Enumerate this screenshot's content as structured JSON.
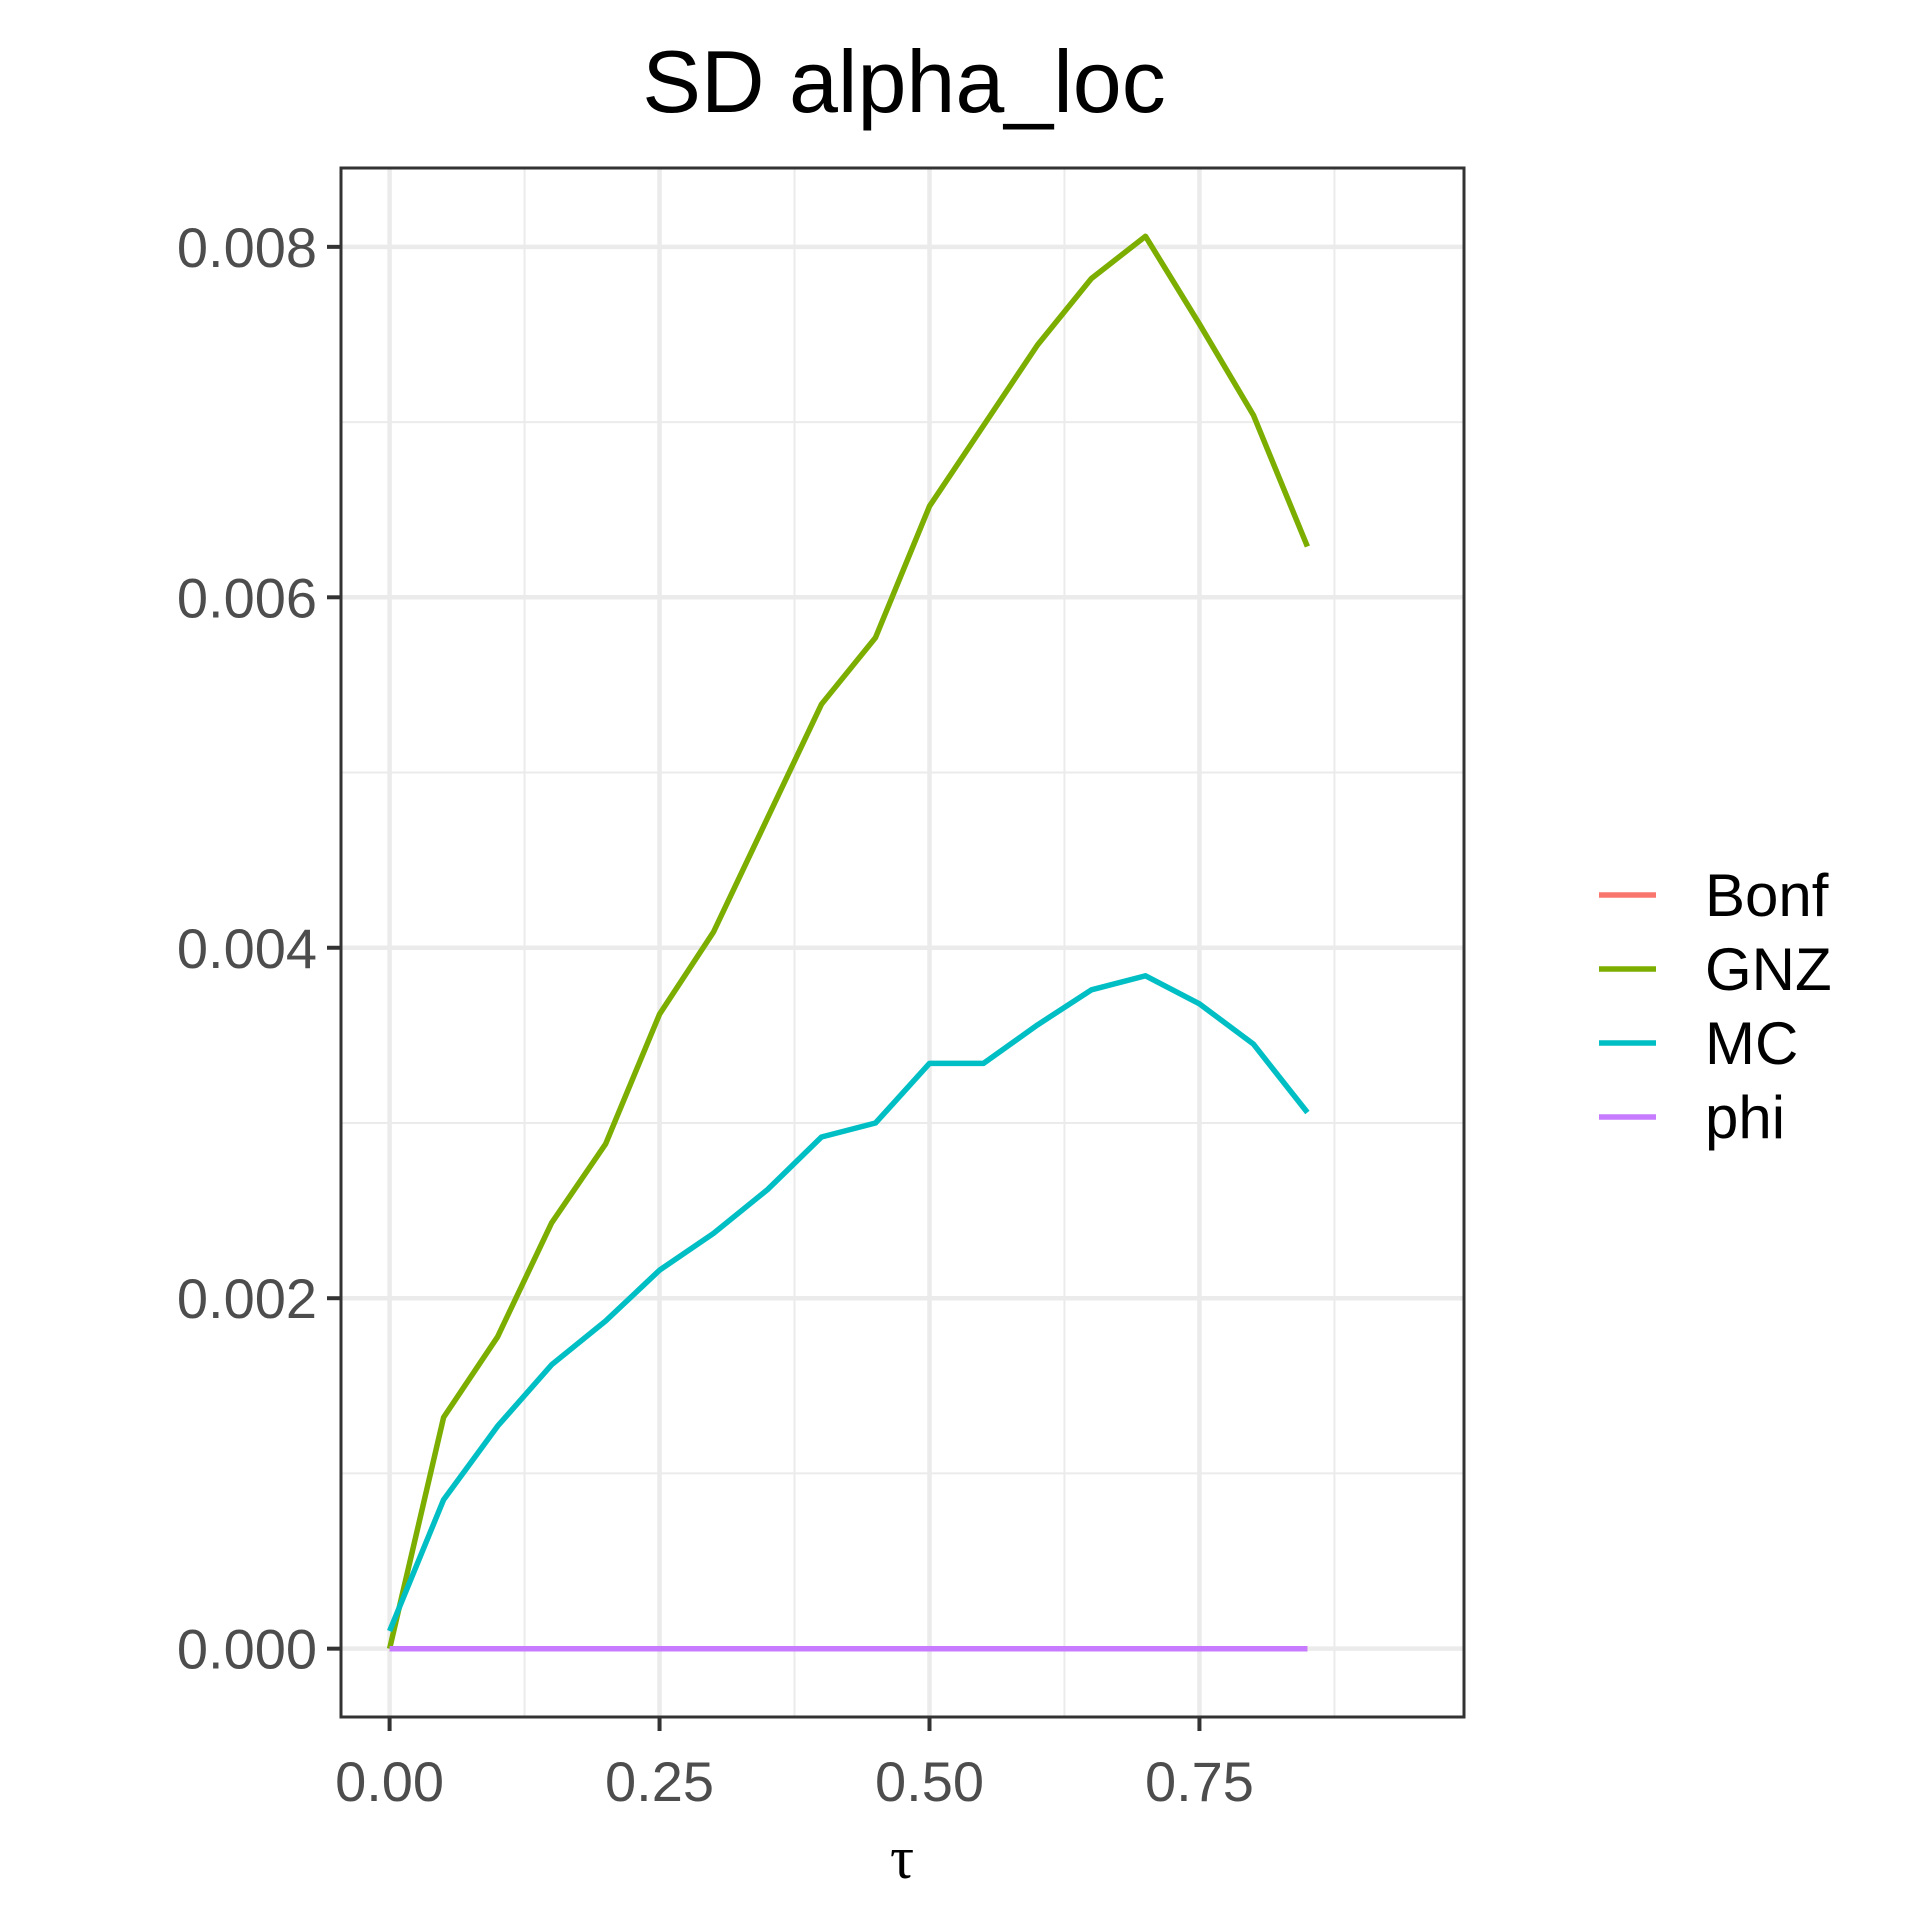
{
  "chart_data": {
    "type": "line",
    "title": "SD alpha_loc",
    "xlabel": "τ",
    "ylabel": "",
    "xlim": [
      -0.045,
      0.995
    ],
    "ylim": [
      -0.00039,
      0.00845
    ],
    "x_ticks": [
      0.0,
      0.25,
      0.5,
      0.75
    ],
    "x_tick_labels": [
      "0.00",
      "0.25",
      "0.50",
      "0.75"
    ],
    "x_minor": [
      0.125,
      0.375,
      0.625,
      0.875
    ],
    "y_ticks": [
      0.0,
      0.002,
      0.004,
      0.006,
      0.008
    ],
    "y_tick_labels": [
      "0.000",
      "0.002",
      "0.004",
      "0.006",
      "0.008"
    ],
    "y_minor": [
      0.001,
      0.003,
      0.005,
      0.007
    ],
    "grid": true,
    "legend_position": "right",
    "series": [
      {
        "name": "Bonf",
        "color": "#F8766D",
        "x": [
          0.0,
          0.05,
          0.1,
          0.15,
          0.2,
          0.25,
          0.3,
          0.35,
          0.4,
          0.45,
          0.5,
          0.55,
          0.6,
          0.65,
          0.7,
          0.75,
          0.8,
          0.85
        ],
        "y": [
          0,
          0,
          0,
          0,
          0,
          0,
          0,
          0,
          0,
          0,
          0,
          0,
          0,
          0,
          0,
          0,
          0,
          0
        ]
      },
      {
        "name": "GNZ",
        "color": "#7CAE00",
        "x": [
          0.0,
          0.05,
          0.1,
          0.15,
          0.2,
          0.25,
          0.3,
          0.35,
          0.4,
          0.45,
          0.5,
          0.55,
          0.6,
          0.65,
          0.7,
          0.75,
          0.8,
          0.85
        ],
        "y": [
          0.0,
          0.00132,
          0.00178,
          0.00243,
          0.00288,
          0.00362,
          0.00409,
          0.00474,
          0.00539,
          0.00577,
          0.00652,
          0.00698,
          0.00744,
          0.00782,
          0.00806,
          0.00756,
          0.00704,
          0.00629
        ]
      },
      {
        "name": "MC",
        "color": "#00BFC4",
        "x": [
          0.0,
          0.05,
          0.1,
          0.15,
          0.2,
          0.25,
          0.3,
          0.35,
          0.4,
          0.45,
          0.5,
          0.55,
          0.6,
          0.65,
          0.7,
          0.75,
          0.8,
          0.85
        ],
        "y": [
          0.0001,
          0.00085,
          0.00127,
          0.00162,
          0.00187,
          0.00216,
          0.00237,
          0.00262,
          0.00292,
          0.003,
          0.00334,
          0.00334,
          0.00356,
          0.00376,
          0.00384,
          0.00368,
          0.00345,
          0.00306
        ]
      },
      {
        "name": "phi",
        "color": "#C77CFF",
        "x": [
          0.0,
          0.05,
          0.1,
          0.15,
          0.2,
          0.25,
          0.3,
          0.35,
          0.4,
          0.45,
          0.5,
          0.55,
          0.6,
          0.65,
          0.7,
          0.75,
          0.8,
          0.85
        ],
        "y": [
          0,
          0,
          0,
          0,
          0,
          0,
          0,
          0,
          0,
          0,
          0,
          0,
          0,
          0,
          0,
          0,
          0,
          0
        ]
      }
    ]
  }
}
